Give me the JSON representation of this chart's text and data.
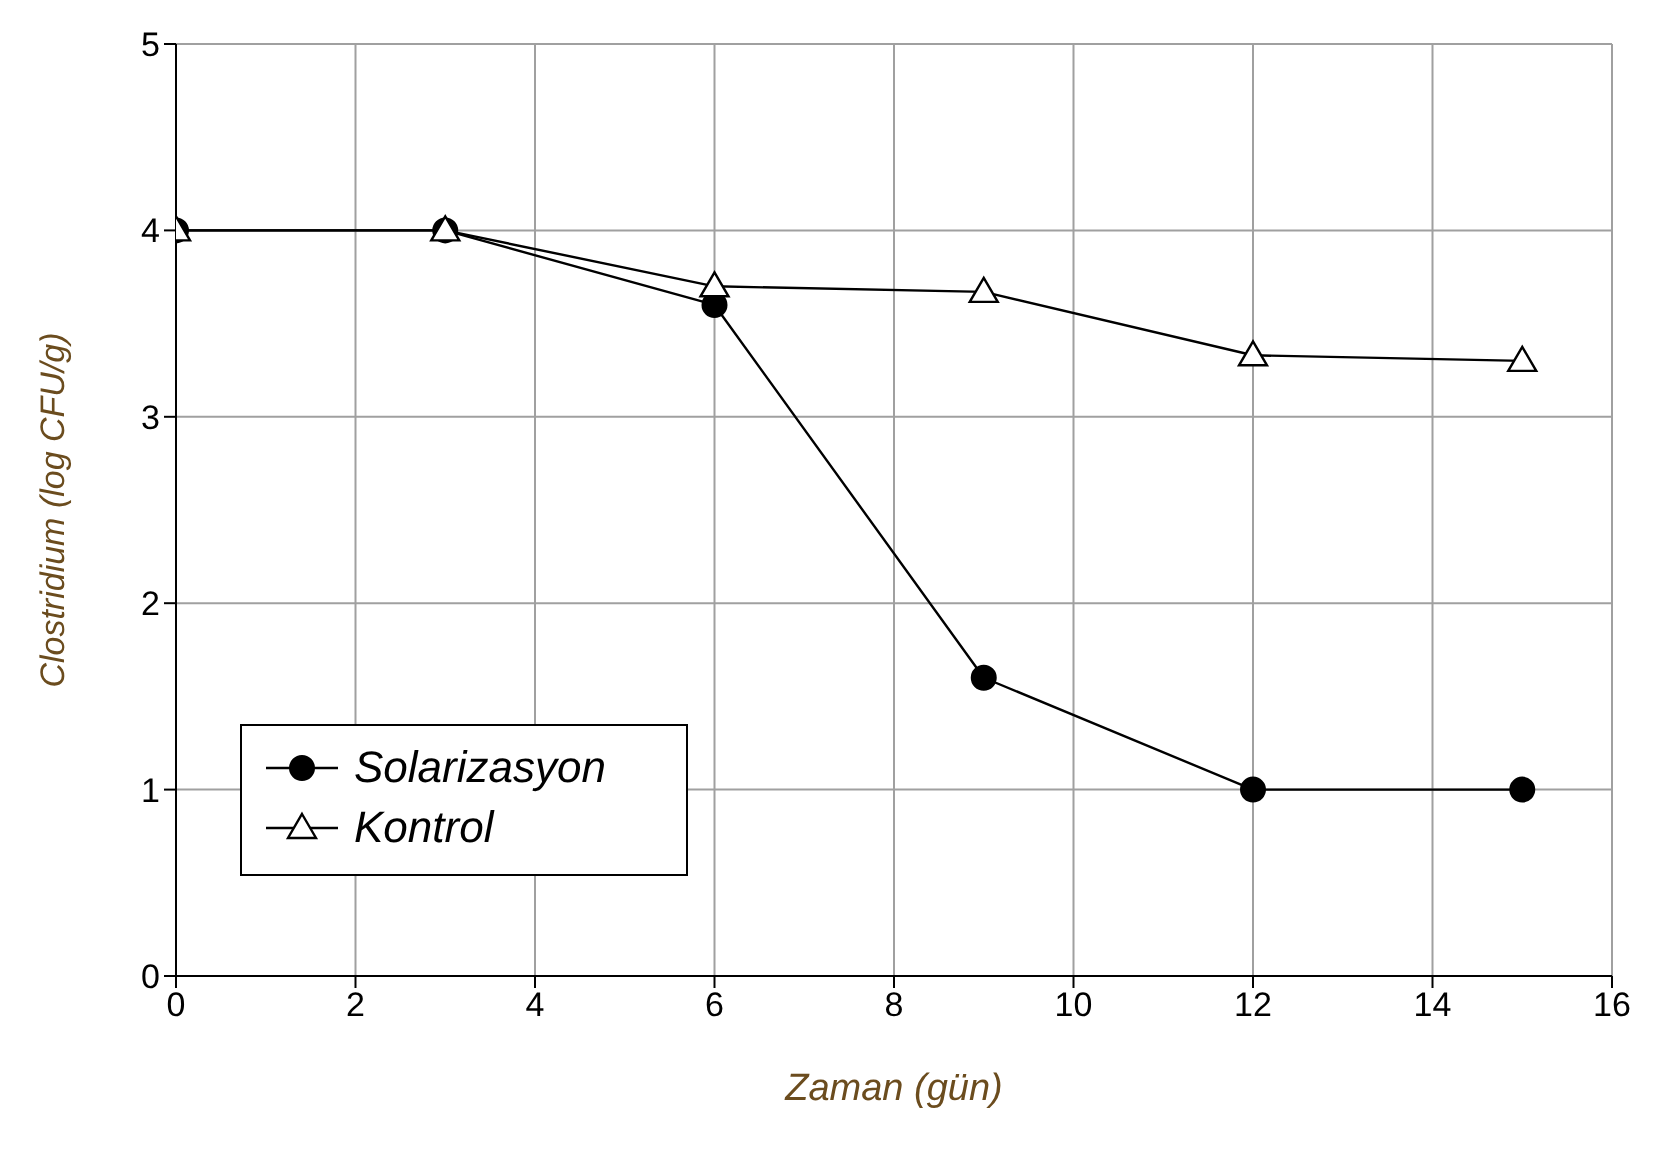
{
  "chart_data": {
    "type": "line",
    "xlabel": "Zaman (gün)",
    "ylabel": "Clostridium (log CFU/g)",
    "xlim": [
      0,
      16
    ],
    "xticks": [
      0,
      2,
      4,
      6,
      8,
      10,
      12,
      14,
      16
    ],
    "ylim": [
      0,
      5
    ],
    "yticks": [
      0,
      1,
      2,
      3,
      4,
      5
    ],
    "grid": true,
    "legend": "bottom left",
    "line_style": "solid",
    "series": [
      {
        "name": "Solarizasyon",
        "color": "#000000",
        "marker": "circle",
        "x": [
          0,
          3,
          6,
          9,
          12,
          15
        ],
        "values": [
          4,
          4,
          3.6,
          1.6,
          1.0,
          1.0
        ]
      },
      {
        "name": "Kontrol",
        "color": "#000000",
        "marker": "triangle",
        "x": [
          0,
          3,
          6,
          9,
          12,
          15
        ],
        "values": [
          4,
          4,
          3.7,
          3.67,
          3.33,
          3.3
        ]
      }
    ]
  }
}
